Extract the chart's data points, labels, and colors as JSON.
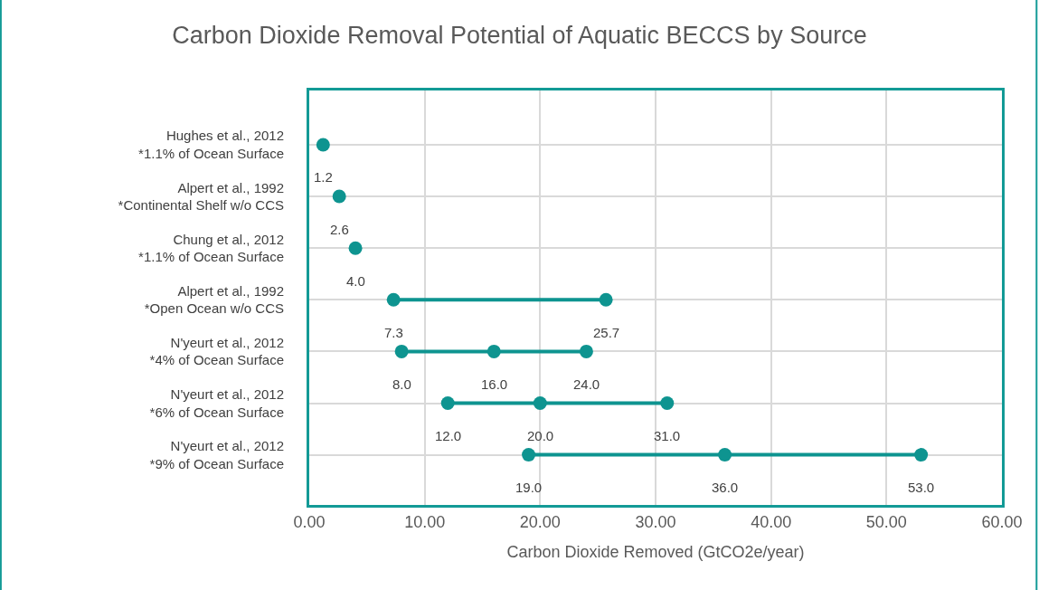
{
  "chart_data": {
    "type": "scatter",
    "orientation": "horizontal",
    "title": "Carbon Dioxide Removal Potential of Aquatic BECCS by Source",
    "xlabel": "Carbon Dioxide Removed (GtCO2e/year)",
    "categories": [
      "Hughes et al., 2012\n*1.1% of Ocean Surface",
      "Alpert et al., 1992\n*Continental Shelf w/o CCS",
      "Chung et al., 2012\n*1.1% of Ocean Surface",
      "Alpert et al., 1992\n*Open Ocean w/o CCS",
      "N'yeurt et al., 2012\n*4% of Ocean Surface",
      "N'yeurt et al., 2012\n*6% of Ocean Surface",
      "N'yeurt et al., 2012\n*9% of Ocean Surface"
    ],
    "series": [
      {
        "color": "#0e9490",
        "values": [
          1.2,
          2.6,
          4.0,
          7.3,
          8.0,
          12.0,
          19.0
        ],
        "value_labels": [
          "1.2",
          "2.6",
          "4.0",
          "7.3",
          "8.0",
          "12.0",
          "19.0"
        ]
      },
      {
        "color": "#0e9490",
        "values": [
          null,
          null,
          null,
          null,
          16.0,
          20.0,
          36.0
        ],
        "value_labels": [
          null,
          null,
          null,
          null,
          "16.0",
          "20.0",
          "36.0"
        ]
      },
      {
        "color": "#0e9490",
        "values": [
          null,
          null,
          null,
          25.7,
          24.0,
          31.0,
          53.0
        ],
        "value_labels": [
          null,
          null,
          null,
          "25.7",
          "24.0",
          "31.0",
          "53.0"
        ]
      }
    ],
    "xlim": [
      0,
      60
    ],
    "xticks": [
      {
        "value": 0,
        "label": "0.00"
      },
      {
        "value": 10,
        "label": "10.00"
      },
      {
        "value": 20,
        "label": "20.00"
      },
      {
        "value": 30,
        "label": "30.00"
      },
      {
        "value": 40,
        "label": "40.00"
      },
      {
        "value": 50,
        "label": "50.00"
      },
      {
        "value": 60,
        "label": "60.00"
      }
    ],
    "grid": true,
    "marker": "circle",
    "line_style": "solid"
  }
}
